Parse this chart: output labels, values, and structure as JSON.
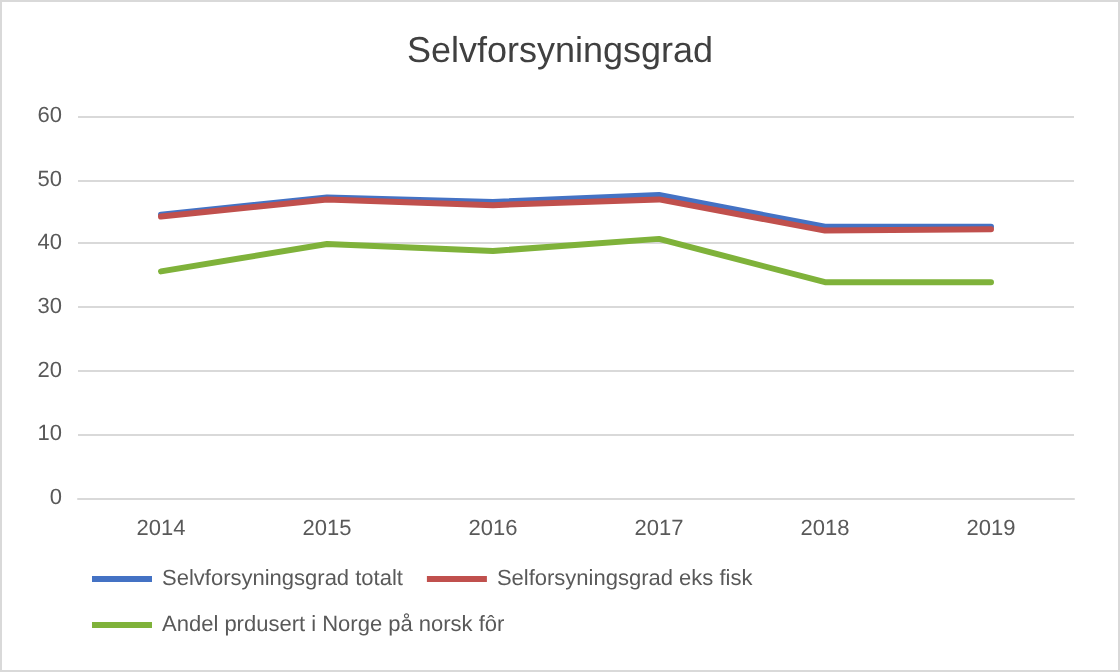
{
  "chart_data": {
    "type": "line",
    "title": "Selvforsyningsgrad",
    "categories": [
      "2014",
      "2015",
      "2016",
      "2017",
      "2018",
      "2019"
    ],
    "series": [
      {
        "name": "Selvforsyningsgrad totalt",
        "color": "#4472c4",
        "values": [
          44.5,
          47.2,
          46.5,
          47.6,
          42.6,
          42.6
        ]
      },
      {
        "name": "Selforsyningsgrad eks fisk",
        "color": "#c0504d",
        "values": [
          44.2,
          46.9,
          46.0,
          46.9,
          42.0,
          42.2
        ]
      },
      {
        "name": "Andel prdusert i Norge på norsk fôr",
        "color": "#7fb23a",
        "values": [
          35.6,
          39.9,
          38.8,
          40.7,
          33.9,
          33.9
        ]
      }
    ],
    "ylim": [
      0,
      60
    ],
    "yticks": [
      0,
      10,
      20,
      30,
      40,
      50,
      60
    ],
    "grid": "y",
    "legend": "bottom",
    "marker": "none",
    "line_style": "solid"
  }
}
